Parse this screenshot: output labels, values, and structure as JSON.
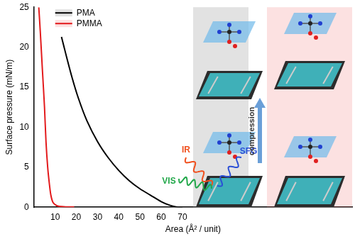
{
  "chart_data": {
    "type": "line",
    "x_label": "Area (Å² / unit)",
    "y_label": "Surface pressure (mN/m)",
    "xlim": [
      0,
      150
    ],
    "xticks": [
      10,
      20,
      30,
      40,
      50,
      60,
      70
    ],
    "ylim": [
      0,
      25
    ],
    "yticks": [
      0,
      5,
      10,
      15,
      20,
      25
    ],
    "grid": false,
    "legend": "upper left",
    "series": [
      {
        "name": "PMA",
        "color": "#000000",
        "x": [
          13,
          15,
          18,
          21,
          25,
          30,
          35,
          40,
          45,
          50,
          55,
          60,
          64,
          67,
          70
        ],
        "values": [
          21.3,
          19.2,
          16.2,
          13.6,
          10.8,
          8.2,
          6.2,
          4.6,
          3.3,
          2.3,
          1.5,
          0.7,
          0.25,
          0.05,
          0
        ]
      },
      {
        "name": "PMMA",
        "color": "#e31a1c",
        "x": [
          2.3,
          3,
          4,
          5,
          5.7,
          6.5,
          7.3,
          8,
          9,
          10.7,
          12,
          15,
          19
        ],
        "values": [
          25,
          22,
          17.2,
          12.5,
          8.2,
          5,
          2.9,
          1.5,
          0.6,
          0.2,
          0.1,
          0.05,
          0.05
        ]
      }
    ],
    "annotations": [
      {
        "text": "IR",
        "color": "#f0501e"
      },
      {
        "text": "VIS",
        "color": "#22a84a"
      },
      {
        "text": "SFG",
        "color": "#2a4fd6"
      },
      {
        "text": "compression",
        "color": "#333333"
      }
    ]
  }
}
